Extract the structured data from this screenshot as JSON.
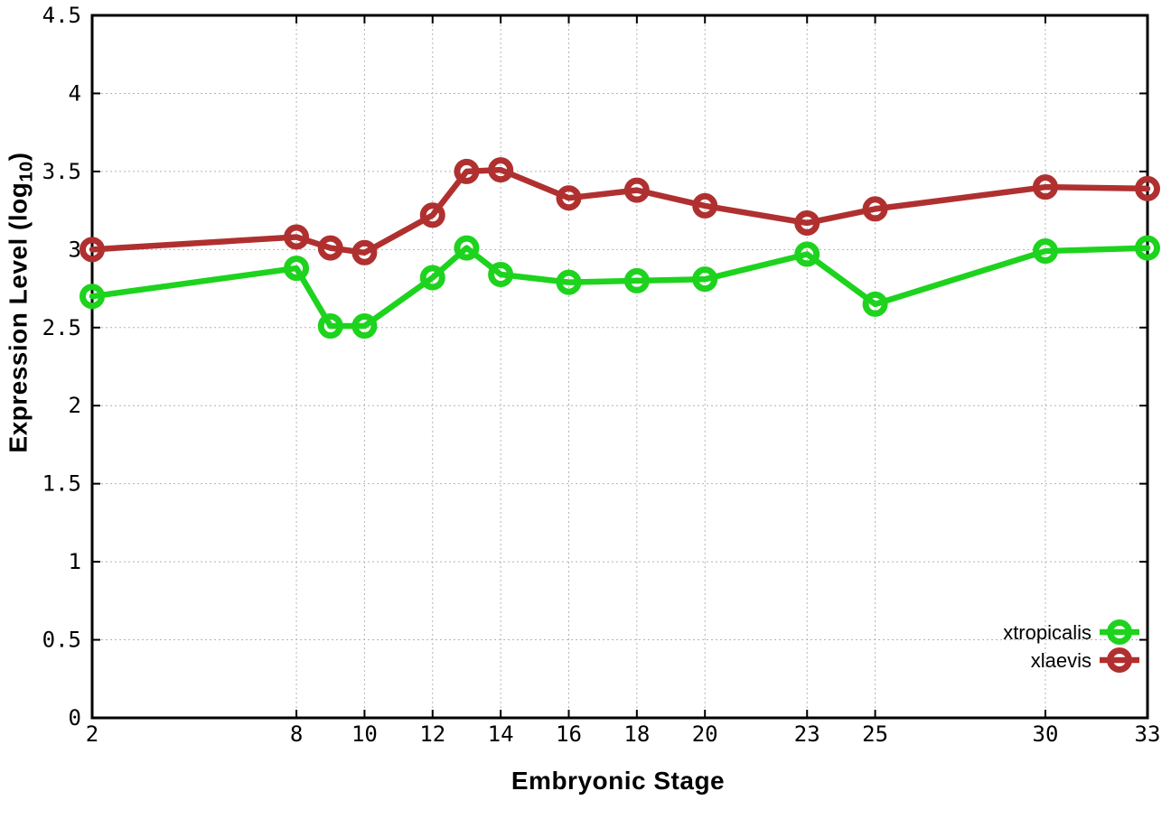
{
  "chart_data": {
    "type": "line",
    "title": "",
    "xlabel": "Embryonic Stage",
    "ylabel_pre": "Expression Level (log",
    "ylabel_sub": "10",
    "ylabel_post": ")",
    "x": [
      2,
      8,
      9,
      10,
      12,
      13,
      14,
      16,
      18,
      20,
      23,
      25,
      30,
      33
    ],
    "series": [
      {
        "name": "xtropicalis",
        "color": "#1dd31d",
        "values": [
          2.7,
          2.88,
          2.51,
          2.51,
          2.82,
          3.01,
          2.84,
          2.79,
          2.8,
          2.81,
          2.97,
          2.65,
          2.99,
          3.01
        ]
      },
      {
        "name": "xlaevis",
        "color": "#b03030",
        "values": [
          3.0,
          3.08,
          3.01,
          2.98,
          3.22,
          3.5,
          3.51,
          3.33,
          3.38,
          3.28,
          3.17,
          3.26,
          3.4,
          3.39
        ]
      }
    ],
    "xlim": [
      2,
      33
    ],
    "ylim": [
      0,
      4.5
    ],
    "x_ticks": [
      2,
      8,
      10,
      12,
      14,
      16,
      18,
      20,
      23,
      25,
      30,
      33
    ],
    "y_ticks": [
      0,
      0.5,
      1,
      1.5,
      2,
      2.5,
      3,
      3.5,
      4,
      4.5
    ],
    "grid": true,
    "legend_position": "bottom-right-inside",
    "marker": "open-circle",
    "colors": {
      "background": "#ffffff",
      "border": "#000000",
      "grid": "#b4b4b4",
      "tick_text": "#000000"
    }
  }
}
